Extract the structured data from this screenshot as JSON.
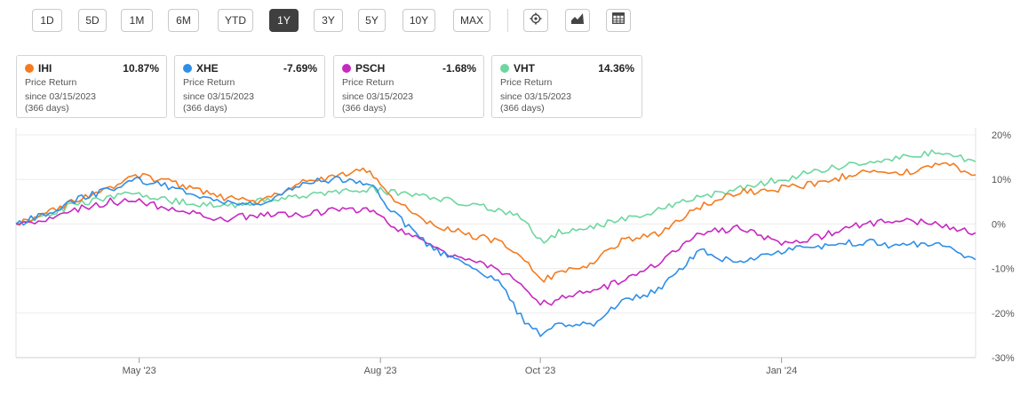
{
  "toolbar": {
    "ranges": [
      "1D",
      "5D",
      "1M",
      "6M",
      "YTD",
      "1Y",
      "3Y",
      "5Y",
      "10Y",
      "MAX"
    ],
    "active_range": "1Y",
    "icons": [
      "gear-icon",
      "chart-type-icon",
      "table-icon"
    ]
  },
  "cards": [
    {
      "ticker": "IHI",
      "value": "10.87%",
      "label": "Price Return",
      "since": "since 03/15/2023",
      "days": "(366 days)",
      "color": "#f47b20"
    },
    {
      "ticker": "XHE",
      "value": "-7.69%",
      "label": "Price Return",
      "since": "since 03/15/2023",
      "days": "(366 days)",
      "color": "#2e8fe8"
    },
    {
      "ticker": "PSCH",
      "value": "-1.68%",
      "label": "Price Return",
      "since": "since 03/15/2023",
      "days": "(366 days)",
      "color": "#c828c0"
    },
    {
      "ticker": "VHT",
      "value": "14.36%",
      "label": "Price Return",
      "since": "since 03/15/2023",
      "days": "(366 days)",
      "color": "#6ed6a0"
    }
  ],
  "chart_data": {
    "type": "line",
    "x_tick_labels": [
      "May '23",
      "Aug '23",
      "Oct '23",
      "Jan '24"
    ],
    "x_tick_dates": [
      "2023-05-01",
      "2023-08-01",
      "2023-10-01",
      "2024-01-01"
    ],
    "x_range": [
      "2023-03-15",
      "2024-03-15"
    ],
    "y_tick_labels": [
      "20%",
      "10%",
      "0%",
      "-10%",
      "-20%",
      "-30%"
    ],
    "y_ticks": [
      20,
      10,
      0,
      -10,
      -20,
      -30
    ],
    "ylim": [
      -30,
      20
    ],
    "grid": "horizontal",
    "series": [
      {
        "name": "IHI",
        "color": "#f47b20",
        "x": [
          "2023-03-15",
          "2023-03-25",
          "2023-04-05",
          "2023-04-20",
          "2023-05-01",
          "2023-05-15",
          "2023-06-01",
          "2023-06-15",
          "2023-07-01",
          "2023-07-15",
          "2023-07-28",
          "2023-08-05",
          "2023-08-20",
          "2023-09-01",
          "2023-09-15",
          "2023-09-25",
          "2023-10-01",
          "2023-10-08",
          "2023-10-20",
          "2023-11-01",
          "2023-11-15",
          "2023-12-01",
          "2023-12-15",
          "2024-01-01",
          "2024-01-15",
          "2024-02-01",
          "2024-02-15",
          "2024-03-01",
          "2024-03-15"
        ],
        "y": [
          0,
          2,
          5,
          8,
          11,
          9,
          6,
          5,
          9,
          11,
          12,
          6,
          0,
          -2,
          -4,
          -8,
          -13,
          -11,
          -9,
          -4,
          -2,
          4,
          7,
          8,
          9,
          12,
          11,
          14,
          11
        ]
      },
      {
        "name": "XHE",
        "color": "#2e8fe8",
        "x": [
          "2023-03-15",
          "2023-03-25",
          "2023-04-05",
          "2023-04-20",
          "2023-05-01",
          "2023-05-15",
          "2023-06-01",
          "2023-06-15",
          "2023-07-01",
          "2023-07-15",
          "2023-07-28",
          "2023-08-05",
          "2023-08-20",
          "2023-09-01",
          "2023-09-15",
          "2023-09-25",
          "2023-10-01",
          "2023-10-08",
          "2023-10-20",
          "2023-11-01",
          "2023-11-15",
          "2023-12-01",
          "2023-12-15",
          "2024-01-01",
          "2024-01-15",
          "2024-02-01",
          "2024-02-15",
          "2024-03-01",
          "2024-03-15"
        ],
        "y": [
          0,
          2,
          5,
          8,
          10,
          8,
          5,
          4,
          9,
          10,
          9,
          3,
          -5,
          -9,
          -13,
          -22,
          -25,
          -22,
          -23,
          -17,
          -15,
          -6,
          -9,
          -6,
          -5,
          -4,
          -5,
          -4,
          -8
        ]
      },
      {
        "name": "PSCH",
        "color": "#c828c0",
        "x": [
          "2023-03-15",
          "2023-03-25",
          "2023-04-05",
          "2023-04-20",
          "2023-05-01",
          "2023-05-15",
          "2023-06-01",
          "2023-06-15",
          "2023-07-01",
          "2023-07-15",
          "2023-07-28",
          "2023-08-05",
          "2023-08-20",
          "2023-09-01",
          "2023-09-15",
          "2023-09-25",
          "2023-10-01",
          "2023-10-08",
          "2023-10-20",
          "2023-11-01",
          "2023-11-15",
          "2023-12-01",
          "2023-12-15",
          "2024-01-01",
          "2024-01-15",
          "2024-02-01",
          "2024-02-15",
          "2024-03-01",
          "2024-03-15"
        ],
        "y": [
          0,
          1,
          3,
          5,
          5,
          3,
          1,
          2,
          2,
          3,
          3,
          0,
          -5,
          -8,
          -10,
          -14,
          -18,
          -17,
          -15,
          -13,
          -9,
          -2,
          -1,
          -4,
          -3,
          0,
          1,
          0,
          -2
        ]
      },
      {
        "name": "VHT",
        "color": "#6ed6a0",
        "x": [
          "2023-03-15",
          "2023-03-25",
          "2023-04-05",
          "2023-04-20",
          "2023-05-01",
          "2023-05-15",
          "2023-06-01",
          "2023-06-15",
          "2023-07-01",
          "2023-07-15",
          "2023-07-28",
          "2023-08-05",
          "2023-08-20",
          "2023-09-01",
          "2023-09-15",
          "2023-09-25",
          "2023-10-01",
          "2023-10-08",
          "2023-10-20",
          "2023-11-01",
          "2023-11-15",
          "2023-12-01",
          "2023-12-15",
          "2024-01-01",
          "2024-01-15",
          "2024-02-01",
          "2024-02-15",
          "2024-03-01",
          "2024-03-15"
        ],
        "y": [
          0,
          2,
          4,
          6,
          7,
          5,
          4,
          5,
          6,
          7,
          8,
          7,
          6,
          5,
          3,
          1,
          -4,
          -2,
          -1,
          1,
          3,
          6,
          8,
          10,
          12,
          14,
          15,
          16,
          14
        ]
      }
    ]
  }
}
